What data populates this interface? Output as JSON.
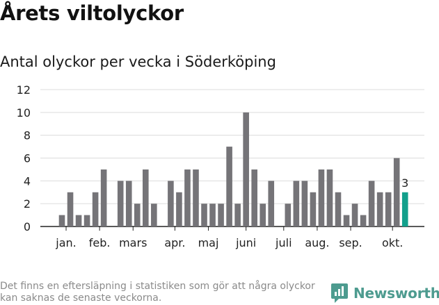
{
  "title": "Årets viltolyckor",
  "subtitle": "Antal olyckor per vecka i Söderköping",
  "footnote": "Det finns en eftersläpning i statistiken som gör att några olyckor kan saknas de senaste veckorna.",
  "brand": {
    "name": "Newsworthy",
    "color": "#4d9b8f"
  },
  "colors": {
    "bar": "#757478",
    "highlight": "#12a08c",
    "grid": "#dcdcdc",
    "axis": "#222222"
  },
  "chart_data": {
    "type": "bar",
    "title": "Antal olyckor per vecka i Söderköping",
    "xlabel": "",
    "ylabel": "",
    "ylim": [
      0,
      12
    ],
    "yticks": [
      0,
      2,
      4,
      6,
      8,
      10,
      12
    ],
    "weeks": [
      1,
      2,
      3,
      4,
      5,
      6,
      7,
      8,
      9,
      10,
      11,
      12,
      13,
      14,
      15,
      16,
      17,
      18,
      19,
      20,
      21,
      22,
      23,
      24,
      25,
      26,
      27,
      28,
      29,
      30,
      31,
      32,
      33,
      34,
      35,
      36,
      37,
      38,
      39,
      40,
      41,
      42,
      43
    ],
    "values": [
      1,
      3,
      1,
      1,
      3,
      5,
      0,
      4,
      4,
      2,
      5,
      2,
      0,
      4,
      3,
      5,
      5,
      2,
      2,
      2,
      7,
      2,
      10,
      5,
      2,
      4,
      0,
      2,
      4,
      4,
      3,
      5,
      5,
      3,
      1,
      2,
      1,
      4,
      3,
      3,
      6,
      3,
      null
    ],
    "highlight_index": 41,
    "highlight_label": "3",
    "month_labels": [
      {
        "label": "jan.",
        "week": 1.5
      },
      {
        "label": "feb.",
        "week": 5.5
      },
      {
        "label": "mars",
        "week": 9.5
      },
      {
        "label": "apr.",
        "week": 14.5
      },
      {
        "label": "maj",
        "week": 18.5
      },
      {
        "label": "juni",
        "week": 23
      },
      {
        "label": "juli",
        "week": 27.5
      },
      {
        "label": "aug.",
        "week": 31.5
      },
      {
        "label": "sep.",
        "week": 35.5
      },
      {
        "label": "okt.",
        "week": 40.5
      }
    ]
  }
}
